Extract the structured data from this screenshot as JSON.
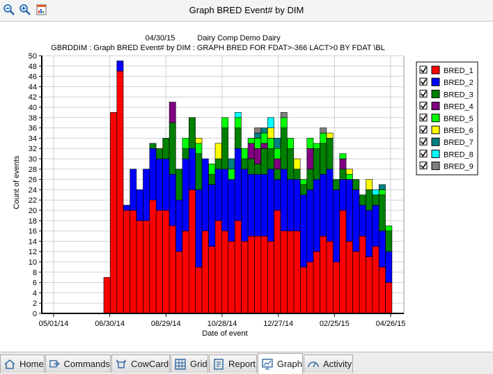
{
  "window": {
    "title": "Graph BRED Event# by DIM"
  },
  "tabs": [
    {
      "label": "Home",
      "icon": "home-icon",
      "active": false
    },
    {
      "label": "Commands",
      "icon": "commands-icon",
      "active": false
    },
    {
      "label": "CowCard",
      "icon": "cowcard-icon",
      "active": false
    },
    {
      "label": "Grid",
      "icon": "grid-icon",
      "active": false
    },
    {
      "label": "Report",
      "icon": "report-icon",
      "active": false
    },
    {
      "label": "Graph",
      "icon": "graph-icon",
      "active": true
    },
    {
      "label": "Activity",
      "icon": "activity-icon",
      "active": false
    }
  ],
  "chart_data": {
    "type": "bar",
    "stacked": true,
    "header_date": "04/30/15",
    "header_name": "Dairy Comp Demo Dairy",
    "subtitle": "GBRDDIM : Graph BRED Event# by DIM : GRAPH BRED FOR FDAT>-366 LACT>0 BY FDAT \\BL",
    "xlabel": "Date of event",
    "ylabel": "Count of events",
    "ylim": [
      0,
      50
    ],
    "yticks": [
      0,
      2,
      4,
      6,
      8,
      10,
      12,
      14,
      16,
      18,
      20,
      22,
      24,
      26,
      28,
      30,
      32,
      34,
      36,
      38,
      40,
      42,
      44,
      46,
      48,
      50
    ],
    "xtick_labels": [
      "05/01/14",
      "06/30/14",
      "08/29/14",
      "10/28/14",
      "12/27/14",
      "02/25/15",
      "04/26/15"
    ],
    "grid": true,
    "legend_position": "right",
    "categories": [
      "06/27/14",
      "07/04/14",
      "07/11/14",
      "07/18/14",
      "07/25/14",
      "08/01/14",
      "08/08/14",
      "08/15/14",
      "08/22/14",
      "08/29/14",
      "09/05/14",
      "09/12/14",
      "09/19/14",
      "09/26/14",
      "10/03/14",
      "10/10/14",
      "10/17/14",
      "10/24/14",
      "10/31/14",
      "11/07/14",
      "11/14/14",
      "11/21/14",
      "11/28/14",
      "12/05/14",
      "12/12/14",
      "12/19/14",
      "12/26/14",
      "01/02/15",
      "01/09/15",
      "01/16/15",
      "01/23/15",
      "01/30/15",
      "02/06/15",
      "02/13/15",
      "02/20/15",
      "02/27/15",
      "03/06/15",
      "03/13/15",
      "03/20/15",
      "03/27/15",
      "04/03/15",
      "04/10/15",
      "04/17/15",
      "04/24/15"
    ],
    "series": [
      {
        "name": "BRED_1",
        "color": "#ff0000",
        "values": [
          7,
          39,
          47,
          20,
          20,
          18,
          18,
          22,
          20,
          20,
          17,
          12,
          16,
          24,
          9,
          16,
          13,
          18,
          16,
          14,
          18,
          14,
          15,
          15,
          15,
          14,
          20,
          16,
          16,
          16,
          9,
          10,
          12,
          15,
          14,
          10,
          20,
          14,
          12,
          15,
          11,
          13,
          9,
          6
        ]
      },
      {
        "name": "BRED_2",
        "color": "#0000ff",
        "values": [
          0,
          0,
          2,
          1,
          8,
          6,
          10,
          10,
          10,
          10,
          10,
          10,
          14,
          8,
          15,
          14,
          12,
          10,
          12,
          12,
          14,
          14,
          12,
          12,
          12,
          14,
          6,
          12,
          10,
          10,
          14,
          14,
          14,
          12,
          14,
          14,
          6,
          12,
          12,
          6,
          9,
          8,
          7,
          6
        ]
      },
      {
        "name": "BRED_3",
        "color": "#008000",
        "values": [
          0,
          0,
          0,
          0,
          0,
          0,
          0,
          1,
          2,
          4,
          10,
          6,
          2,
          6,
          7,
          0,
          2,
          2,
          8,
          0,
          4,
          2,
          3,
          2,
          5,
          4,
          2,
          8,
          6,
          2,
          2,
          4,
          6,
          6,
          6,
          2,
          2,
          0,
          2,
          2,
          4,
          2,
          7,
          4
        ]
      },
      {
        "name": "BRED_4",
        "color": "#800080",
        "values": [
          0,
          0,
          0,
          0,
          0,
          0,
          0,
          0,
          0,
          0,
          4,
          0,
          0,
          0,
          0,
          0,
          0,
          0,
          0,
          0,
          0,
          0,
          3,
          3,
          1,
          0,
          2,
          0,
          0,
          0,
          0,
          4,
          0,
          0,
          0,
          0,
          2,
          0,
          0,
          0,
          0,
          0,
          0,
          0
        ]
      },
      {
        "name": "BRED_5",
        "color": "#00ff00",
        "values": [
          0,
          0,
          0,
          0,
          0,
          0,
          0,
          0,
          0,
          0,
          0,
          0,
          2,
          0,
          2,
          0,
          2,
          0,
          2,
          2,
          2,
          2,
          1,
          2,
          2,
          2,
          2,
          2,
          2,
          0,
          1,
          2,
          1,
          2,
          0,
          0,
          1,
          1,
          0,
          0,
          0,
          0,
          1,
          1
        ]
      },
      {
        "name": "BRED_6",
        "color": "#ffff00",
        "values": [
          0,
          0,
          0,
          0,
          0,
          0,
          0,
          0,
          0,
          0,
          0,
          0,
          0,
          0,
          1,
          0,
          0,
          3,
          0,
          0,
          0,
          0,
          0,
          0,
          0,
          2,
          0,
          0,
          0,
          2,
          0,
          0,
          0,
          0,
          1,
          0,
          0,
          1,
          0,
          0,
          2,
          0,
          0,
          0
        ]
      },
      {
        "name": "BRED_7",
        "color": "#008080",
        "values": [
          0,
          0,
          0,
          0,
          0,
          0,
          0,
          0,
          0,
          0,
          0,
          0,
          0,
          0,
          0,
          0,
          0,
          0,
          0,
          2,
          0,
          0,
          0,
          1,
          1,
          0,
          2,
          0,
          0,
          0,
          0,
          0,
          0,
          0,
          0,
          0,
          0,
          0,
          0,
          0,
          0,
          0,
          1,
          0
        ]
      },
      {
        "name": "BRED_8",
        "color": "#00ffff",
        "values": [
          0,
          0,
          0,
          0,
          0,
          0,
          0,
          0,
          0,
          0,
          0,
          0,
          0,
          0,
          0,
          0,
          0,
          0,
          0,
          0,
          1,
          0,
          0,
          0,
          0,
          2,
          0,
          0,
          0,
          0,
          0,
          0,
          0,
          0,
          0,
          0,
          0,
          0,
          0,
          0,
          0,
          1,
          0,
          0
        ]
      },
      {
        "name": "BRED_9",
        "color": "#808080",
        "values": [
          0,
          0,
          0,
          0,
          0,
          0,
          0,
          0,
          0,
          0,
          0,
          0,
          0,
          0,
          0,
          0,
          0,
          0,
          0,
          0,
          0,
          0,
          0,
          1,
          0,
          0,
          0,
          1,
          0,
          0,
          0,
          0,
          0,
          1,
          0,
          0,
          0,
          0,
          0,
          0,
          0,
          0,
          0,
          0
        ]
      }
    ]
  }
}
